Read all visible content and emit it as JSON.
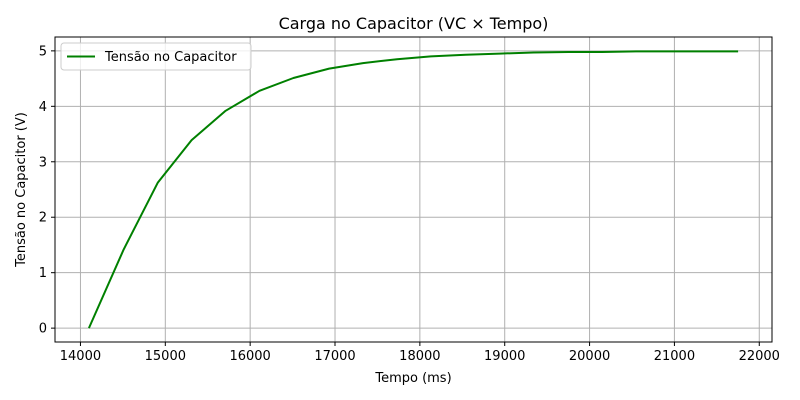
{
  "chart_data": {
    "type": "line",
    "title": "Carga no Capacitor (VC × Tempo)",
    "xlabel": "Tempo (ms)",
    "ylabel": "Tensão no Capacitor (V)",
    "xlim": [
      13700,
      22150
    ],
    "ylim": [
      -0.25,
      5.25
    ],
    "xticks": [
      14000,
      15000,
      16000,
      17000,
      18000,
      19000,
      20000,
      21000,
      22000
    ],
    "yticks": [
      0,
      1,
      2,
      3,
      4,
      5
    ],
    "grid": true,
    "legend_position": "top-left",
    "series": [
      {
        "name": "Tensão no Capacitor",
        "color": "#008000",
        "x": [
          14100,
          14510,
          14910,
          15310,
          15710,
          16110,
          16510,
          16930,
          17330,
          17730,
          18130,
          18540,
          18940,
          19340,
          19750,
          20150,
          20550,
          20950,
          21350,
          21750
        ],
        "y": [
          0.0,
          1.42,
          2.62,
          3.39,
          3.92,
          4.28,
          4.51,
          4.68,
          4.78,
          4.85,
          4.9,
          4.93,
          4.95,
          4.97,
          4.98,
          4.98,
          4.99,
          4.99,
          4.99,
          4.99
        ]
      }
    ]
  }
}
